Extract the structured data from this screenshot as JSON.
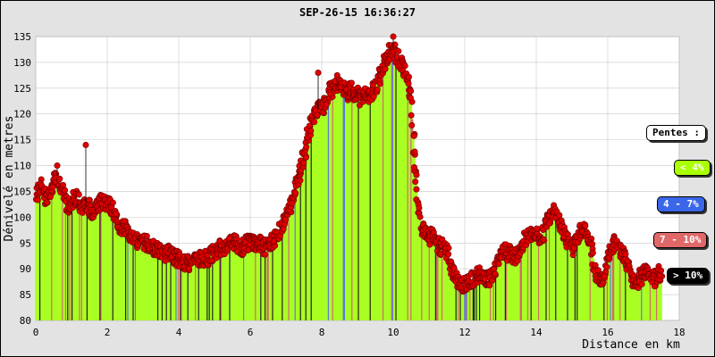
{
  "chart_data": {
    "type": "area",
    "title": "SEP-26-15 16:36:27",
    "xlabel": "Distance en km",
    "ylabel": "Dénivelé en metres",
    "xlim": [
      0,
      18
    ],
    "ylim": [
      80,
      135
    ],
    "x_ticks": [
      "0",
      "2",
      "4",
      "6",
      "8",
      "10",
      "12",
      "14",
      "16",
      "18"
    ],
    "y_ticks": [
      "80",
      "85",
      "90",
      "95",
      "100",
      "105",
      "110",
      "115",
      "120",
      "125",
      "130",
      "135"
    ],
    "grid": true,
    "marker_color": "#e00000",
    "fill_color": "#aaff22",
    "profile": [
      [
        0.0,
        104
      ],
      [
        0.1,
        106
      ],
      [
        0.2,
        106
      ],
      [
        0.3,
        103
      ],
      [
        0.4,
        105
      ],
      [
        0.5,
        107
      ],
      [
        0.6,
        108
      ],
      [
        0.7,
        106
      ],
      [
        0.8,
        104
      ],
      [
        0.9,
        102
      ],
      [
        1.0,
        103
      ],
      [
        1.1,
        104
      ],
      [
        1.2,
        103
      ],
      [
        1.3,
        102
      ],
      [
        1.4,
        103
      ],
      [
        1.5,
        102
      ],
      [
        1.6,
        101
      ],
      [
        1.7,
        102
      ],
      [
        1.8,
        103
      ],
      [
        1.9,
        103
      ],
      [
        2.0,
        103
      ],
      [
        2.1,
        102
      ],
      [
        2.2,
        100
      ],
      [
        2.3,
        99
      ],
      [
        2.4,
        98
      ],
      [
        2.5,
        98
      ],
      [
        2.6,
        97
      ],
      [
        2.7,
        96
      ],
      [
        2.8,
        96
      ],
      [
        2.9,
        95
      ],
      [
        3.0,
        95
      ],
      [
        3.1,
        95
      ],
      [
        3.2,
        94
      ],
      [
        3.3,
        94
      ],
      [
        3.4,
        94
      ],
      [
        3.5,
        93
      ],
      [
        3.6,
        93
      ],
      [
        3.7,
        93
      ],
      [
        3.8,
        93
      ],
      [
        3.9,
        92
      ],
      [
        4.0,
        92
      ],
      [
        4.1,
        91
      ],
      [
        4.2,
        91
      ],
      [
        4.3,
        91
      ],
      [
        4.4,
        91
      ],
      [
        4.5,
        92
      ],
      [
        4.6,
        92
      ],
      [
        4.7,
        92
      ],
      [
        4.8,
        92
      ],
      [
        4.9,
        93
      ],
      [
        5.0,
        93
      ],
      [
        5.1,
        94
      ],
      [
        5.2,
        94
      ],
      [
        5.3,
        94
      ],
      [
        5.4,
        95
      ],
      [
        5.5,
        95
      ],
      [
        5.6,
        95
      ],
      [
        5.7,
        94
      ],
      [
        5.8,
        94
      ],
      [
        5.9,
        95
      ],
      [
        6.0,
        95
      ],
      [
        6.1,
        95
      ],
      [
        6.2,
        95
      ],
      [
        6.3,
        95
      ],
      [
        6.4,
        94
      ],
      [
        6.5,
        95
      ],
      [
        6.6,
        95
      ],
      [
        6.7,
        96
      ],
      [
        6.8,
        97
      ],
      [
        6.9,
        98
      ],
      [
        7.0,
        100
      ],
      [
        7.1,
        102
      ],
      [
        7.2,
        104
      ],
      [
        7.3,
        107
      ],
      [
        7.4,
        109
      ],
      [
        7.5,
        112
      ],
      [
        7.6,
        115
      ],
      [
        7.7,
        118
      ],
      [
        7.8,
        120
      ],
      [
        7.9,
        121
      ],
      [
        8.0,
        121
      ],
      [
        8.1,
        122
      ],
      [
        8.2,
        124
      ],
      [
        8.3,
        125
      ],
      [
        8.4,
        126
      ],
      [
        8.5,
        126
      ],
      [
        8.6,
        125
      ],
      [
        8.7,
        124
      ],
      [
        8.8,
        125
      ],
      [
        8.9,
        124
      ],
      [
        9.0,
        124
      ],
      [
        9.1,
        123
      ],
      [
        9.2,
        124
      ],
      [
        9.3,
        123
      ],
      [
        9.4,
        124
      ],
      [
        9.5,
        125
      ],
      [
        9.6,
        127
      ],
      [
        9.7,
        129
      ],
      [
        9.8,
        131
      ],
      [
        9.9,
        132
      ],
      [
        10.0,
        133
      ],
      [
        10.1,
        131
      ],
      [
        10.2,
        130
      ],
      [
        10.3,
        129
      ],
      [
        10.4,
        127
      ],
      [
        10.5,
        122
      ],
      [
        10.6,
        112
      ],
      [
        10.7,
        102
      ],
      [
        10.8,
        98
      ],
      [
        10.9,
        97
      ],
      [
        11.0,
        96
      ],
      [
        11.1,
        97
      ],
      [
        11.2,
        95
      ],
      [
        11.3,
        94
      ],
      [
        11.4,
        95
      ],
      [
        11.5,
        93
      ],
      [
        11.6,
        91
      ],
      [
        11.7,
        89
      ],
      [
        11.8,
        88
      ],
      [
        11.9,
        87
      ],
      [
        12.0,
        87
      ],
      [
        12.1,
        87
      ],
      [
        12.2,
        88
      ],
      [
        12.3,
        88
      ],
      [
        12.4,
        89
      ],
      [
        12.5,
        89
      ],
      [
        12.6,
        88
      ],
      [
        12.7,
        88
      ],
      [
        12.8,
        89
      ],
      [
        12.9,
        91
      ],
      [
        13.0,
        93
      ],
      [
        13.1,
        94
      ],
      [
        13.2,
        93
      ],
      [
        13.3,
        93
      ],
      [
        13.4,
        92
      ],
      [
        13.5,
        93
      ],
      [
        13.6,
        94
      ],
      [
        13.7,
        96
      ],
      [
        13.8,
        97
      ],
      [
        13.9,
        97
      ],
      [
        14.0,
        97
      ],
      [
        14.1,
        96
      ],
      [
        14.2,
        97
      ],
      [
        14.3,
        99
      ],
      [
        14.4,
        100
      ],
      [
        14.5,
        101
      ],
      [
        14.6,
        100
      ],
      [
        14.7,
        98
      ],
      [
        14.8,
        96
      ],
      [
        14.9,
        95
      ],
      [
        15.0,
        94
      ],
      [
        15.1,
        95
      ],
      [
        15.2,
        97
      ],
      [
        15.3,
        98
      ],
      [
        15.4,
        97
      ],
      [
        15.5,
        95
      ],
      [
        15.6,
        92
      ],
      [
        15.7,
        89
      ],
      [
        15.8,
        88
      ],
      [
        15.9,
        89
      ],
      [
        16.0,
        92
      ],
      [
        16.1,
        94
      ],
      [
        16.2,
        95
      ],
      [
        16.3,
        94
      ],
      [
        16.4,
        93
      ],
      [
        16.5,
        92
      ],
      [
        16.6,
        90
      ],
      [
        16.7,
        88
      ],
      [
        16.8,
        87
      ],
      [
        16.9,
        88
      ],
      [
        17.0,
        90
      ],
      [
        17.1,
        89
      ],
      [
        17.2,
        89
      ],
      [
        17.3,
        88
      ],
      [
        17.4,
        89
      ],
      [
        17.5,
        89
      ]
    ],
    "spikes": [
      [
        0.6,
        110
      ],
      [
        1.4,
        114
      ],
      [
        7.9,
        128
      ],
      [
        10.0,
        135
      ]
    ]
  },
  "legend": {
    "title": "Pentes :",
    "items": [
      {
        "label": "< 4%",
        "color": "#aaff00"
      },
      {
        "label": "4 - 7%",
        "color": "#3a66e8"
      },
      {
        "label": "7 - 10%",
        "color": "#e06868"
      },
      {
        "label": "> 10%",
        "color": "#000000"
      }
    ]
  }
}
